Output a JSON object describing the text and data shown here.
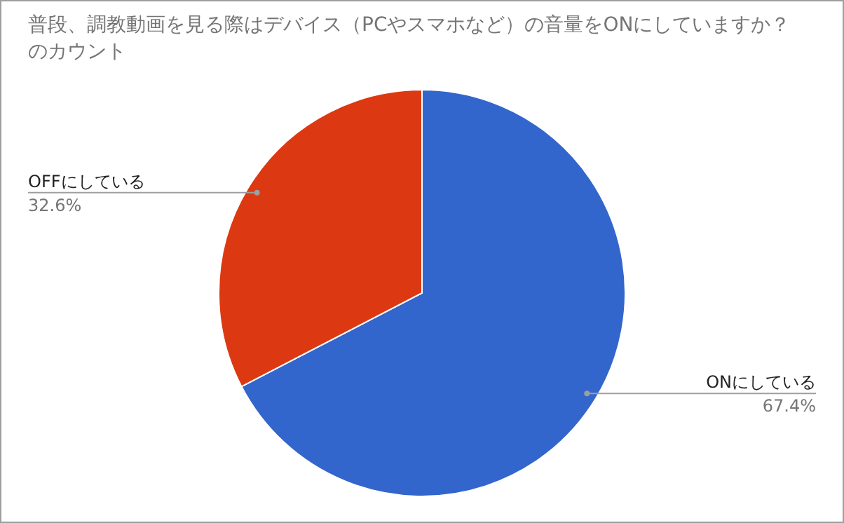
{
  "chart_data": {
    "type": "pie",
    "title": "普段、調教動画を見る際はデバイス（PCやスマホなど）の音量をONにしていますか？のカウント",
    "categories": [
      "ONにしている",
      "OFFにしている"
    ],
    "values": [
      67.4,
      32.6
    ],
    "colors": [
      "#3366cc",
      "#dc3912"
    ],
    "value_labels": [
      "67.4%",
      "32.6%"
    ]
  }
}
